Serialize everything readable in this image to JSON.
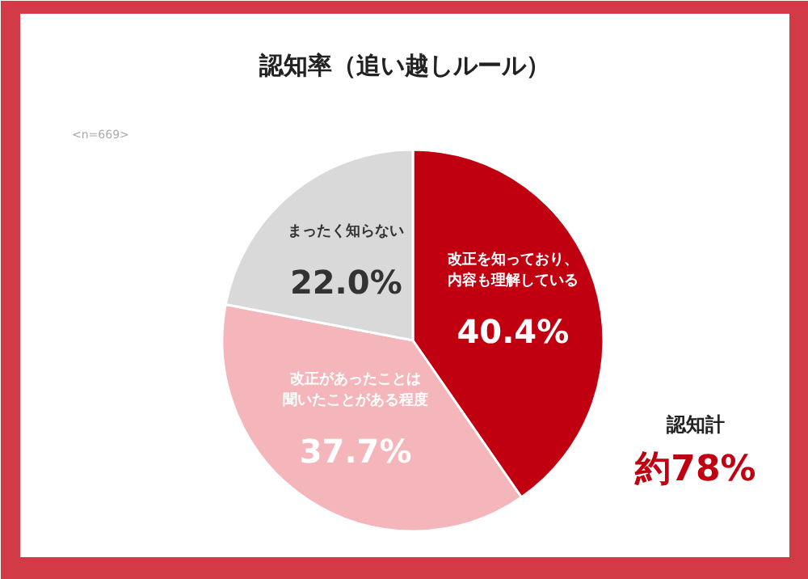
{
  "chart_data": {
    "type": "pie",
    "title": "認知率（追い越しルール）",
    "subtitle": "<n=669>",
    "categories": [
      "改正を知っており、内容も理解している",
      "改正があったことは聞いたことがある程度",
      "まったく知らない"
    ],
    "values": [
      40.4,
      37.7,
      22.0
    ],
    "colors": [
      "#c00010",
      "#f4b6ba",
      "#d9d9d9"
    ],
    "value_labels": [
      "40.4%",
      "37.7%",
      "22.0%"
    ],
    "annotations": [
      "認知計",
      "約78%"
    ]
  }
}
